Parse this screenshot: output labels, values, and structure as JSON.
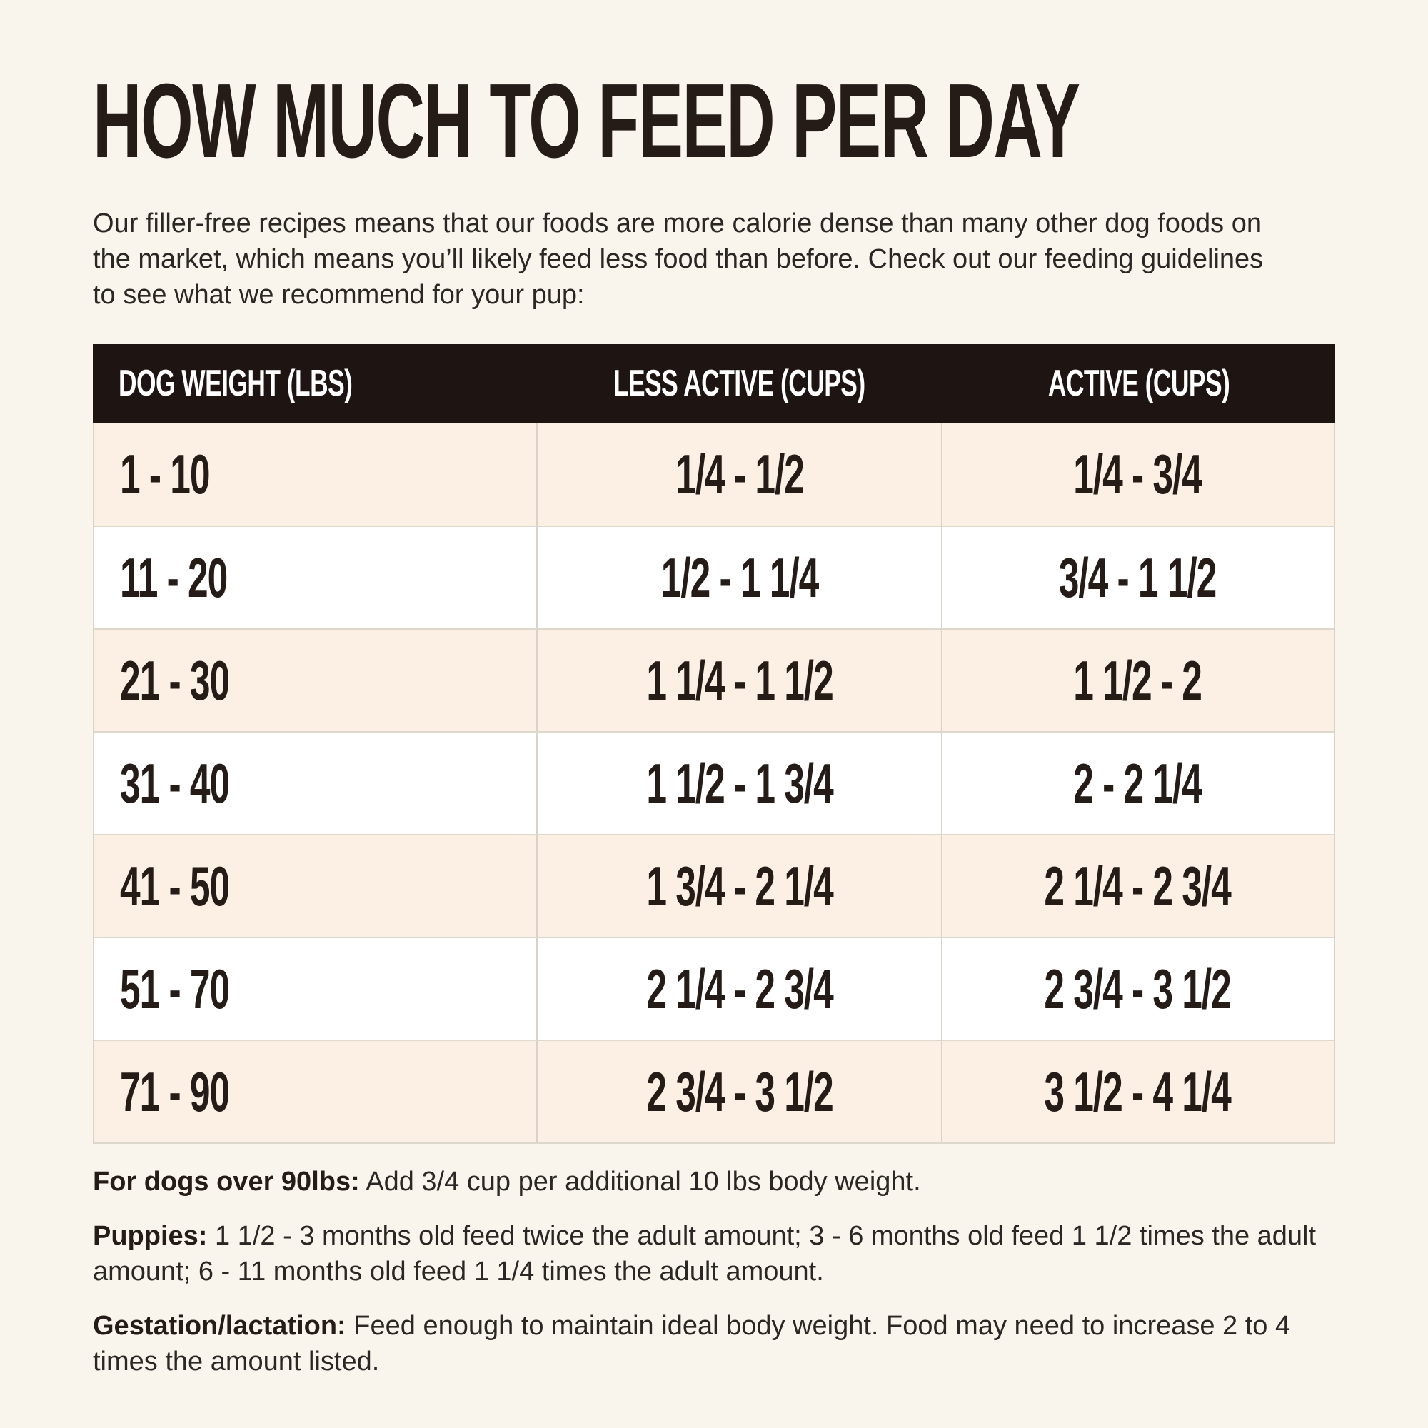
{
  "title": "HOW MUCH TO FEED PER DAY",
  "intro": "Our filler-free recipes means that our foods are more calorie dense than many other dog foods on the market, which means you’ll likely feed less food than before. Check out our feeding guidelines to see what we recommend for your pup:",
  "table": {
    "columns": [
      {
        "label": "DOG WEIGHT (LBS)"
      },
      {
        "label": "LESS ACTIVE (CUPS)"
      },
      {
        "label": "ACTIVE (CUPS)"
      }
    ],
    "rows": [
      {
        "weight": "1 - 10",
        "less_active": "1/4 - 1/2",
        "active": "1/4 - 3/4"
      },
      {
        "weight": "11 - 20",
        "less_active": "1/2 - 1 1/4",
        "active": "3/4 - 1 1/2"
      },
      {
        "weight": "21 - 30",
        "less_active": "1 1/4 - 1 1/2",
        "active": "1 1/2 - 2"
      },
      {
        "weight": "31 - 40",
        "less_active": "1 1/2 - 1 3/4",
        "active": "2 - 2 1/4"
      },
      {
        "weight": "41 - 50",
        "less_active": "1 3/4 - 2 1/4",
        "active": "2 1/4 - 2 3/4"
      },
      {
        "weight": "51 - 70",
        "less_active": "2 1/4 - 2 3/4",
        "active": "2 3/4 - 3 1/2"
      },
      {
        "weight": "71 - 90",
        "less_active": "2 3/4 - 3 1/2",
        "active": "3 1/2 - 4 1/4"
      }
    ]
  },
  "notes": [
    {
      "label": "For dogs over 90lbs:",
      "text": "Add 3/4 cup per additional 10 lbs body weight."
    },
    {
      "label": "Puppies:",
      "text": "1 1/2 - 3 months old feed twice the adult amount; 3 - 6 months old feed 1 1/2 times the adult amount; 6 - 11 months old feed 1 1/4 times the adult amount."
    },
    {
      "label": "Gestation/lactation:",
      "text": "Feed enough to maintain ideal body weight. Food may need to increase 2 to 4 times the amount listed."
    }
  ],
  "colors": {
    "page_bg": "#f9f4ec",
    "header_bg": "#1e1513",
    "header_text": "#ffffff",
    "row_cream": "#fbf0e3",
    "row_white": "#ffffff",
    "divider_v": "#d8d2c8",
    "divider_h": "#ddd7cc",
    "ink": "#251c18",
    "body_ink": "#2b2724"
  }
}
